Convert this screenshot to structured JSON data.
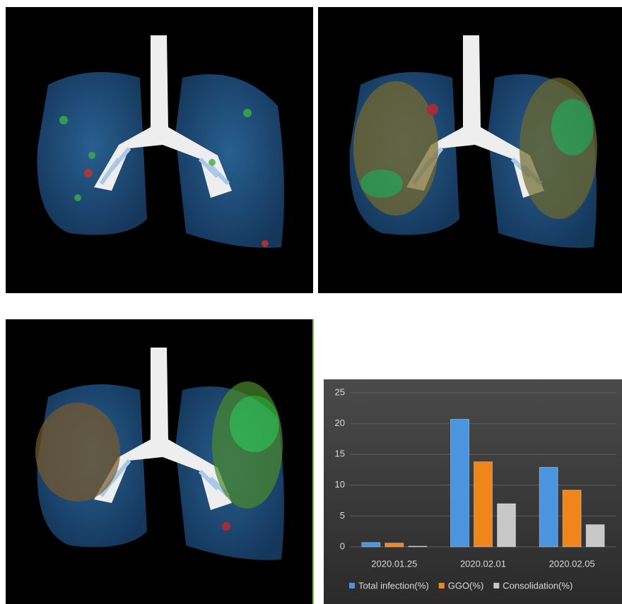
{
  "chart_data": {
    "type": "bar",
    "categories": [
      "2020.01.25",
      "2020.02.01",
      "2020.02.05"
    ],
    "series": [
      {
        "name": "Total infection(%)",
        "color": "#4a94e0",
        "values": [
          0.7,
          20.7,
          12.9
        ]
      },
      {
        "name": "GGO(%)",
        "color": "#f0861a",
        "values": [
          0.6,
          13.8,
          9.2
        ]
      },
      {
        "name": "Consolidation(%)",
        "color": "#c8c8c8",
        "values": [
          0.1,
          7.0,
          3.6
        ]
      }
    ],
    "ylim": [
      0,
      25
    ],
    "yticks": [
      0,
      5,
      10,
      15,
      20,
      25
    ],
    "grid": true,
    "legend": "bottom"
  }
}
